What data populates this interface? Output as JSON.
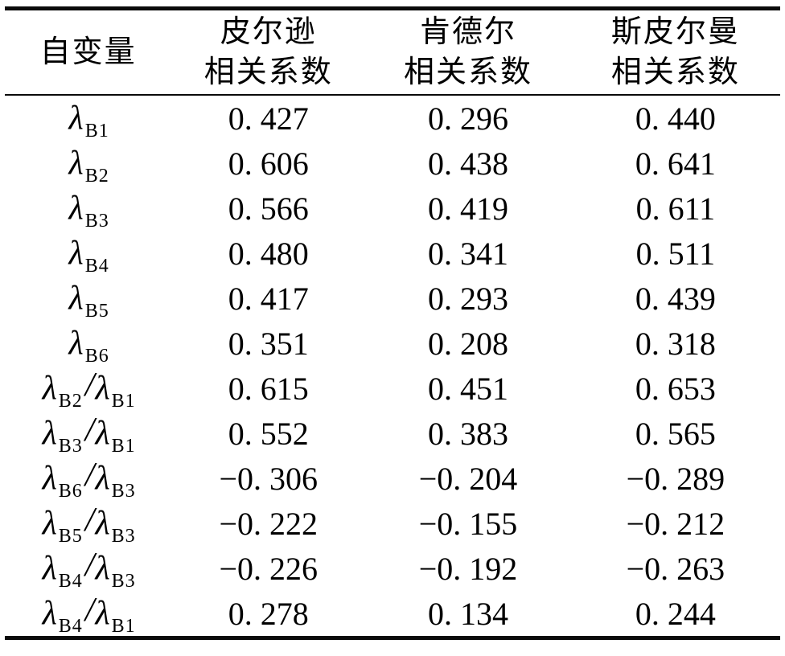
{
  "table": {
    "header": {
      "variable": "自变量",
      "columns": [
        {
          "line1": "皮尔逊",
          "line2": "相关系数"
        },
        {
          "line1": "肯德尔",
          "line2": "相关系数"
        },
        {
          "line1": "斯皮尔曼",
          "line2": "相关系数"
        }
      ]
    },
    "divider": "/",
    "rows": [
      {
        "label": [
          {
            "sym": "λ",
            "sub": "B1"
          }
        ],
        "values": [
          "0. 427",
          "0. 296",
          "0. 440"
        ]
      },
      {
        "label": [
          {
            "sym": "λ",
            "sub": "B2"
          }
        ],
        "values": [
          "0. 606",
          "0. 438",
          "0. 641"
        ]
      },
      {
        "label": [
          {
            "sym": "λ",
            "sub": "B3"
          }
        ],
        "values": [
          "0. 566",
          "0. 419",
          "0. 611"
        ]
      },
      {
        "label": [
          {
            "sym": "λ",
            "sub": "B4"
          }
        ],
        "values": [
          "0. 480",
          "0. 341",
          "0. 511"
        ]
      },
      {
        "label": [
          {
            "sym": "λ",
            "sub": "B5"
          }
        ],
        "values": [
          "0. 417",
          "0. 293",
          "0. 439"
        ]
      },
      {
        "label": [
          {
            "sym": "λ",
            "sub": "B6"
          }
        ],
        "values": [
          "0. 351",
          "0. 208",
          "0. 318"
        ]
      },
      {
        "label": [
          {
            "sym": "λ",
            "sub": "B2"
          },
          {
            "sym": "λ",
            "sub": "B1"
          }
        ],
        "values": [
          "0. 615",
          "0. 451",
          "0. 653"
        ]
      },
      {
        "label": [
          {
            "sym": "λ",
            "sub": "B3"
          },
          {
            "sym": "λ",
            "sub": "B1"
          }
        ],
        "values": [
          "0. 552",
          "0. 383",
          "0. 565"
        ]
      },
      {
        "label": [
          {
            "sym": "λ",
            "sub": "B6"
          },
          {
            "sym": "λ",
            "sub": "B3"
          }
        ],
        "values": [
          "−0. 306",
          "−0. 204",
          "−0. 289"
        ]
      },
      {
        "label": [
          {
            "sym": "λ",
            "sub": "B5"
          },
          {
            "sym": "λ",
            "sub": "B3"
          }
        ],
        "values": [
          "−0. 222",
          "−0. 155",
          "−0. 212"
        ]
      },
      {
        "label": [
          {
            "sym": "λ",
            "sub": "B4"
          },
          {
            "sym": "λ",
            "sub": "B3"
          }
        ],
        "values": [
          "−0. 226",
          "−0. 192",
          "−0. 263"
        ]
      },
      {
        "label": [
          {
            "sym": "λ",
            "sub": "B4"
          },
          {
            "sym": "λ",
            "sub": "B1"
          }
        ],
        "values": [
          "0. 278",
          "0. 134",
          "0. 244"
        ]
      }
    ]
  },
  "colors": {
    "rule": "#0a0a0a",
    "background": "#ffffff",
    "text": "#000000"
  },
  "chart_data": {
    "type": "table",
    "columns": [
      "自变量",
      "皮尔逊相关系数",
      "肯德尔相关系数",
      "斯皮尔曼相关系数"
    ],
    "rows": [
      [
        "λB1",
        0.427,
        0.296,
        0.44
      ],
      [
        "λB2",
        0.606,
        0.438,
        0.641
      ],
      [
        "λB3",
        0.566,
        0.419,
        0.611
      ],
      [
        "λB4",
        0.48,
        0.341,
        0.511
      ],
      [
        "λB5",
        0.417,
        0.293,
        0.439
      ],
      [
        "λB6",
        0.351,
        0.208,
        0.318
      ],
      [
        "λB2/λB1",
        0.615,
        0.451,
        0.653
      ],
      [
        "λB3/λB1",
        0.552,
        0.383,
        0.565
      ],
      [
        "λB6/λB3",
        -0.306,
        -0.204,
        -0.289
      ],
      [
        "λB5/λB3",
        -0.222,
        -0.155,
        -0.212
      ],
      [
        "λB4/λB3",
        -0.226,
        -0.192,
        -0.263
      ],
      [
        "λB4/λB1",
        0.278,
        0.134,
        0.244
      ]
    ]
  }
}
